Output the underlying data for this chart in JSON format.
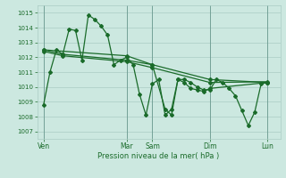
{
  "xlabel": "Pression niveau de la mer( hPa )",
  "bg_color": "#cce8e0",
  "grid_color": "#aaccc4",
  "line_color": "#1a6b2a",
  "vline_color": "#6a9a90",
  "ylim": [
    1006.5,
    1015.5
  ],
  "yticks": [
    1007,
    1008,
    1009,
    1010,
    1011,
    1012,
    1013,
    1014,
    1015
  ],
  "day_labels": [
    "Ven",
    "Mar",
    "Sam",
    "Dim",
    "Lun"
  ],
  "day_positions": [
    0,
    13,
    17,
    26,
    35
  ],
  "xlim": [
    -1,
    37
  ],
  "series1_x": [
    0,
    1,
    2,
    3,
    4,
    5,
    6,
    7,
    8,
    9,
    10,
    11,
    12,
    13,
    14,
    15,
    16,
    17,
    18,
    19,
    20,
    21,
    22,
    23,
    24,
    25,
    26,
    35
  ],
  "series1_y": [
    1008.8,
    1011.0,
    1012.5,
    1012.2,
    1013.9,
    1013.8,
    1011.8,
    1014.85,
    1014.55,
    1014.1,
    1013.5,
    1011.5,
    1011.8,
    1012.0,
    1011.5,
    1009.5,
    1008.1,
    1010.2,
    1010.5,
    1008.1,
    1008.5,
    1010.5,
    1010.3,
    1009.9,
    1009.8,
    1009.7,
    1009.9,
    1010.3
  ],
  "series2_x": [
    0,
    3,
    13,
    17,
    26,
    35
  ],
  "series2_y": [
    1012.5,
    1012.2,
    1011.8,
    1011.5,
    1010.5,
    1010.3
  ],
  "series3_x": [
    0,
    3,
    13,
    17,
    26,
    35
  ],
  "series3_y": [
    1012.4,
    1012.1,
    1011.7,
    1011.3,
    1010.3,
    1010.35
  ],
  "series4_x": [
    0,
    13,
    17,
    19,
    20,
    21,
    22,
    23,
    24,
    25,
    26,
    27,
    28,
    29,
    30,
    31,
    32,
    33,
    34,
    35
  ],
  "series4_y": [
    1012.5,
    1012.1,
    1011.5,
    1008.5,
    1008.1,
    1010.5,
    1010.5,
    1010.3,
    1010.0,
    1009.8,
    1009.8,
    1010.5,
    1010.3,
    1009.9,
    1009.4,
    1008.4,
    1007.4,
    1008.3,
    1010.2,
    1010.3
  ]
}
